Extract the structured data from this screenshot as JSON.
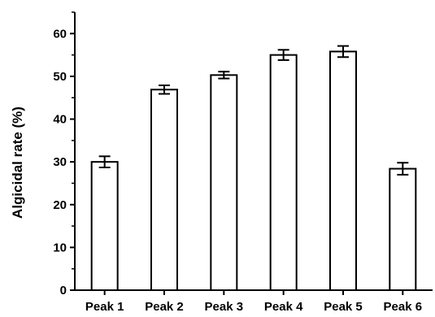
{
  "chart_data": {
    "type": "bar",
    "title": "",
    "xlabel": "",
    "ylabel": "Algicidal rate (%)",
    "categories": [
      "Peak 1",
      "Peak 2",
      "Peak 3",
      "Peak 4",
      "Peak 5",
      "Peak 6"
    ],
    "values": [
      30.0,
      46.9,
      50.3,
      55.0,
      55.8,
      28.4
    ],
    "errors": [
      1.3,
      1.0,
      0.8,
      1.2,
      1.3,
      1.4
    ],
    "ylim": [
      0,
      65
    ],
    "yticks": [
      0,
      10,
      20,
      30,
      40,
      50,
      60
    ],
    "grid": false,
    "legend": "none",
    "bar_fill": "#ffffff",
    "bar_stroke": "#000000"
  }
}
